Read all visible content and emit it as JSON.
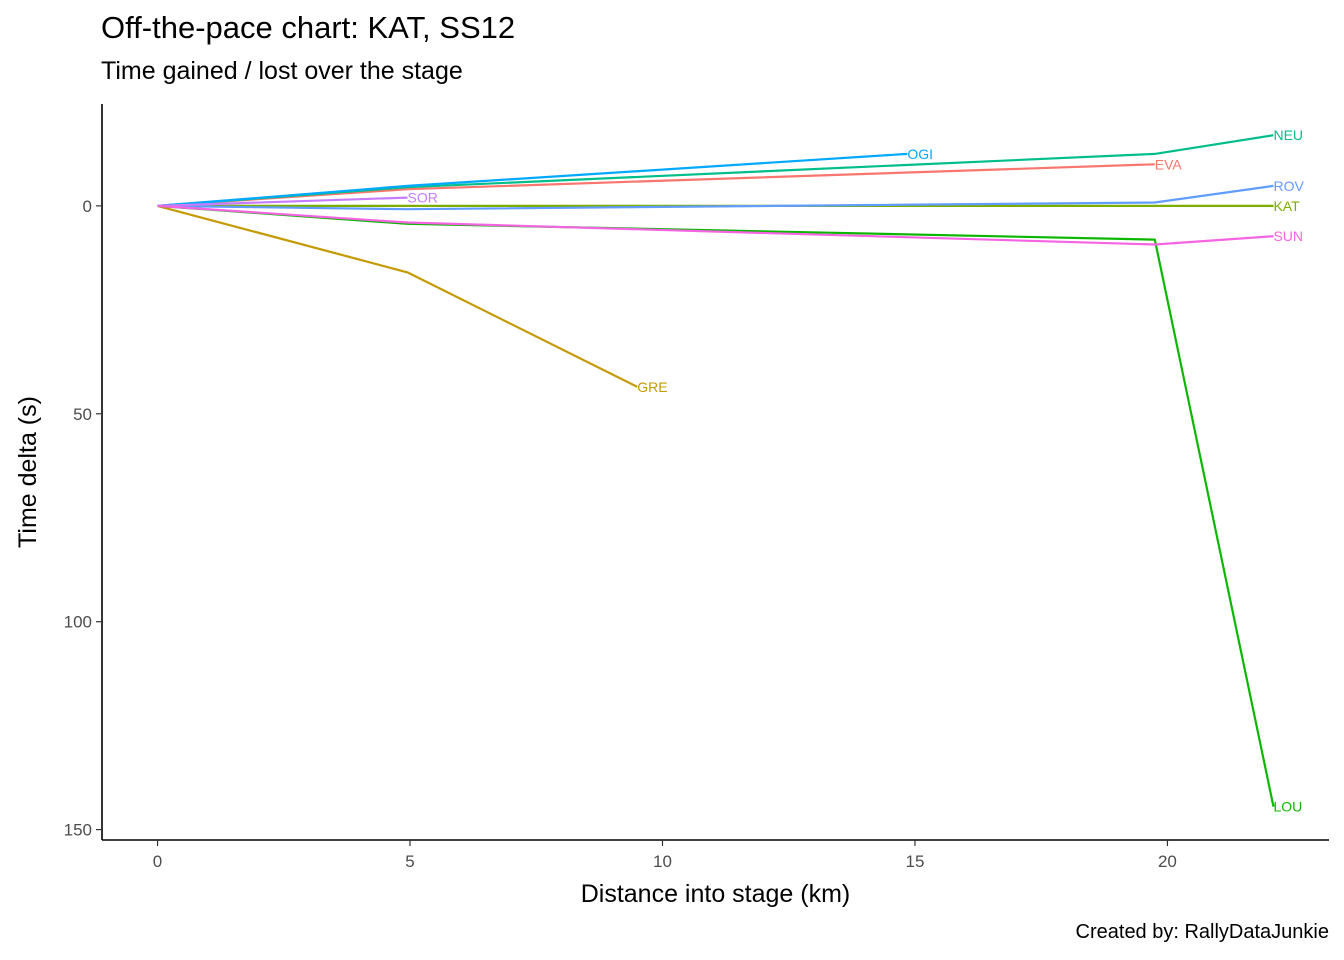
{
  "chart_data": {
    "type": "line",
    "title": "Off-the-pace chart: KAT, SS12",
    "subtitle": "Time gained / lost over the stage",
    "xlabel": "Distance into stage (km)",
    "ylabel": "Time delta (s)",
    "caption": "Created by: RallyDataJunkie",
    "xlim": [
      -1.1,
      23.2
    ],
    "ylim": [
      -24.5,
      152.5
    ],
    "y_reversed": true,
    "x_ticks": [
      0,
      5,
      10,
      15,
      20
    ],
    "y_ticks": [
      0,
      50,
      100,
      150
    ],
    "grid": false,
    "legend": "none (direct labels at line ends)",
    "series": [
      {
        "name": "EVA",
        "color": "#F8766D",
        "x": [
          0,
          4.95,
          19.75
        ],
        "y": [
          0,
          -4.0,
          -10.0
        ]
      },
      {
        "name": "GRE",
        "color": "#C49A00",
        "x": [
          0,
          4.95,
          9.5
        ],
        "y": [
          0,
          16.0,
          43.5
        ]
      },
      {
        "name": "KAT",
        "color": "#7CAE00",
        "x": [
          0,
          4.95,
          19.75,
          22.1
        ],
        "y": [
          0,
          0,
          0,
          0
        ]
      },
      {
        "name": "LOU",
        "color": "#0CB702",
        "x": [
          0,
          4.95,
          19.75,
          22.1
        ],
        "y": [
          0,
          4.3,
          8.1,
          144.5
        ]
      },
      {
        "name": "NEU",
        "color": "#00BE8A",
        "x": [
          0,
          4.95,
          19.75,
          22.1
        ],
        "y": [
          0,
          -4.5,
          -12.5,
          -17.0
        ]
      },
      {
        "name": "OGI",
        "color": "#00A9FF",
        "x": [
          0,
          4.95,
          14.85
        ],
        "y": [
          0,
          -4.8,
          -12.5
        ]
      },
      {
        "name": "ROV",
        "color": "#619CFF",
        "x": [
          0,
          4.95,
          19.75,
          22.1
        ],
        "y": [
          0,
          0.8,
          -0.8,
          -4.8
        ]
      },
      {
        "name": "SOR",
        "color": "#C77CFF",
        "x": [
          0,
          4.95
        ],
        "y": [
          0,
          -2.0
        ]
      },
      {
        "name": "SUN",
        "color": "#F564E3",
        "x": [
          0,
          4.95,
          19.75,
          22.1
        ],
        "y": [
          0,
          4.0,
          9.3,
          7.3
        ]
      }
    ]
  }
}
